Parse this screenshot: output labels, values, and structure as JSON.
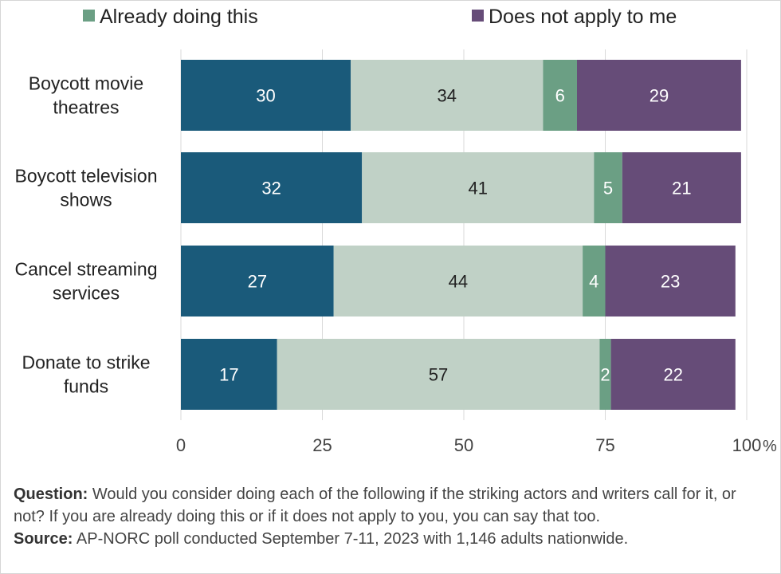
{
  "chart_data": {
    "type": "bar",
    "orientation": "horizontal",
    "stacked": true,
    "categories": [
      [
        "Boycott movie",
        "theatres"
      ],
      [
        "Boycott television",
        "shows"
      ],
      [
        "Cancel streaming",
        "services"
      ],
      [
        "Donate to strike",
        "funds"
      ]
    ],
    "series": [
      {
        "color": "#1a5a7a",
        "label_color": "#ffffff",
        "values": [
          30,
          32,
          27,
          17
        ]
      },
      {
        "color": "#c0d1c6",
        "label_color": "#222222",
        "values": [
          34,
          41,
          44,
          57
        ]
      },
      {
        "name": "Already doing this",
        "color": "#6b9f84",
        "label_color": "#ffffff",
        "values": [
          6,
          5,
          4,
          2
        ]
      },
      {
        "name": "Does not apply to me",
        "color": "#664c78",
        "label_color": "#ffffff",
        "values": [
          29,
          21,
          23,
          22
        ]
      }
    ],
    "xlim": [
      0,
      100
    ],
    "xticks": [
      "0",
      "25",
      "50",
      "75",
      "100"
    ],
    "x_unit": "%",
    "grid": true,
    "legend_position": "top"
  },
  "footnote": {
    "question_label": "Question:",
    "question_text": "Would you consider doing each of the following if the striking actors and writers call for it, or not? If you are already doing this or if it does not apply to you, you can say that too.",
    "source_label": "Source:",
    "source_text": "AP-NORC poll conducted September 7-11, 2023 with 1,146 adults nationwide."
  }
}
